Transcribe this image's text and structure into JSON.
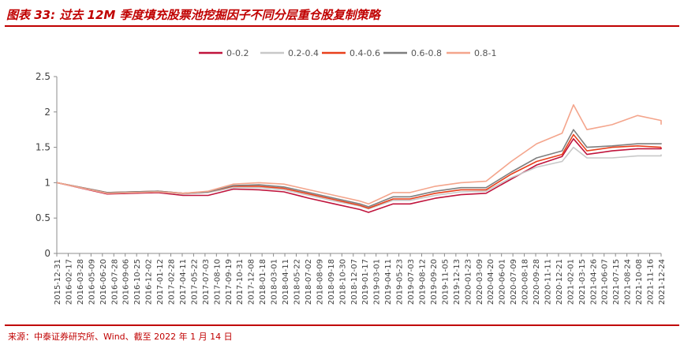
{
  "header": {
    "title": "图表 33:  过去 12M 季度填充股票池挖掘因子不同分层重仓股复制策略"
  },
  "footer": {
    "source": "来源：中泰证券研究所、Wind、截至 2022 年 1 月 14 日"
  },
  "colors": {
    "accent": "#c00000"
  },
  "chart_data": {
    "type": "line",
    "title": "",
    "xlabel": "",
    "ylabel": "",
    "ylim": [
      0,
      2.5
    ],
    "yticks": [
      "0",
      "0.5",
      "1",
      "1.5",
      "2",
      "2.5"
    ],
    "grid": false,
    "legend_position": "top-center",
    "x_tick_labels": [
      "2015-12-31",
      "2016-02-17",
      "2016-03-28",
      "2016-05-09",
      "2016-06-20",
      "2016-07-28",
      "2016-09-06",
      "2016-10-25",
      "2016-12-02",
      "2017-01-12",
      "2017-02-28",
      "2017-04-11",
      "2017-05-22",
      "2017-07-03",
      "2017-08-10",
      "2017-09-19",
      "2017-10-31",
      "2017-12-08",
      "2018-01-18",
      "2018-03-01",
      "2018-04-11",
      "2018-05-22",
      "2018-07-02",
      "2018-08-09",
      "2018-09-18",
      "2018-10-30",
      "2018-12-07",
      "2019-01-17",
      "2019-03-01",
      "2019-04-11",
      "2019-05-23",
      "2019-07-03",
      "2019-08-12",
      "2019-09-20",
      "2019-11-05",
      "2019-12-13",
      "2020-01-23",
      "2020-03-09",
      "2020-04-20",
      "2020-06-01",
      "2020-07-09",
      "2020-08-18",
      "2020-09-28",
      "2020-11-11",
      "2020-12-21",
      "2021-02-01",
      "2021-03-15",
      "2021-04-26",
      "2021-06-07",
      "2021-07-15",
      "2021-08-24",
      "2021-10-08",
      "2021-11-16",
      "2021-12-24"
    ],
    "x": [
      "2015-12-31",
      "2016-06-30",
      "2016-12-31",
      "2017-03-31",
      "2017-06-30",
      "2017-09-30",
      "2017-12-31",
      "2018-03-31",
      "2018-06-30",
      "2018-09-30",
      "2018-12-31",
      "2019-01-31",
      "2019-04-30",
      "2019-06-30",
      "2019-09-30",
      "2019-12-31",
      "2020-03-31",
      "2020-06-30",
      "2020-09-30",
      "2020-12-31",
      "2021-02-10",
      "2021-03-31",
      "2021-06-30",
      "2021-09-30",
      "2021-12-31",
      "2022-01-14"
    ],
    "series": [
      {
        "name": "0-0.2",
        "color": "#c0143c",
        "values": [
          1.0,
          0.84,
          0.86,
          0.82,
          0.82,
          0.91,
          0.9,
          0.87,
          0.78,
          0.7,
          0.62,
          0.58,
          0.7,
          0.7,
          0.78,
          0.83,
          0.85,
          1.05,
          1.25,
          1.37,
          1.62,
          1.4,
          1.45,
          1.48,
          1.48,
          1.5
        ]
      },
      {
        "name": "0.2-0.4",
        "color": "#c8c8c8",
        "values": [
          1.0,
          0.85,
          0.87,
          0.84,
          0.86,
          0.93,
          0.93,
          0.9,
          0.82,
          0.74,
          0.67,
          0.63,
          0.75,
          0.75,
          0.82,
          0.87,
          0.88,
          1.07,
          1.22,
          1.3,
          1.5,
          1.35,
          1.35,
          1.38,
          1.38,
          1.4
        ]
      },
      {
        "name": "0.4-0.6",
        "color": "#e8401c",
        "values": [
          1.0,
          0.86,
          0.88,
          0.85,
          0.87,
          0.95,
          0.95,
          0.92,
          0.84,
          0.76,
          0.68,
          0.64,
          0.77,
          0.77,
          0.85,
          0.9,
          0.9,
          1.12,
          1.3,
          1.4,
          1.68,
          1.45,
          1.5,
          1.52,
          1.5,
          1.5
        ]
      },
      {
        "name": "0.6-0.8",
        "color": "#7f7f7f",
        "values": [
          1.0,
          0.86,
          0.88,
          0.85,
          0.87,
          0.96,
          0.97,
          0.94,
          0.86,
          0.78,
          0.7,
          0.66,
          0.8,
          0.8,
          0.88,
          0.93,
          0.93,
          1.15,
          1.35,
          1.45,
          1.75,
          1.5,
          1.52,
          1.55,
          1.55,
          1.56
        ]
      },
      {
        "name": "0.8-1",
        "color": "#f4a58c",
        "values": [
          1.0,
          0.85,
          0.87,
          0.85,
          0.88,
          0.98,
          1.0,
          0.98,
          0.9,
          0.82,
          0.74,
          0.7,
          0.86,
          0.86,
          0.95,
          1.0,
          1.02,
          1.3,
          1.55,
          1.7,
          2.1,
          1.75,
          1.82,
          1.95,
          1.88,
          1.82
        ]
      }
    ]
  }
}
